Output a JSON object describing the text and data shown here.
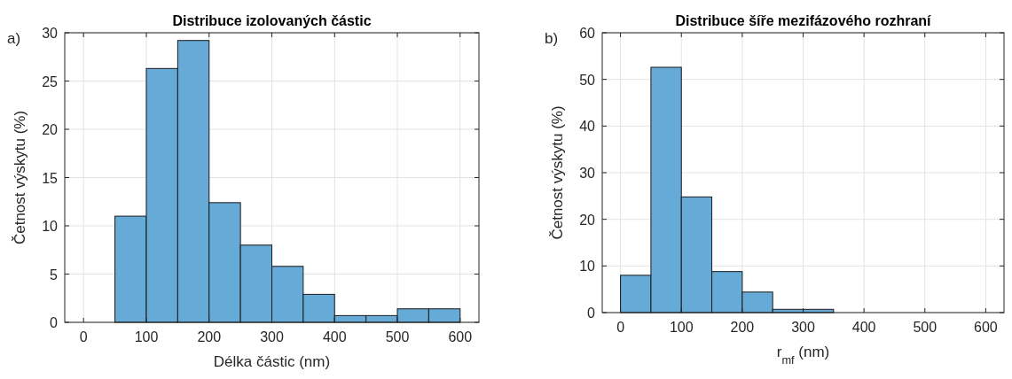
{
  "chart_data": [
    {
      "type": "histogram",
      "title": "Distribuce izolovaných částic",
      "xlabel": "Délka částic (nm)",
      "ylabel": "Četnost výskytu (%)",
      "annotations": [
        "a)"
      ],
      "bins": [
        0,
        50,
        100,
        150,
        200,
        250,
        300,
        350,
        400,
        450,
        500,
        550,
        600
      ],
      "values": [
        0,
        11,
        26.3,
        29.2,
        12.4,
        8,
        5.8,
        2.9,
        0.7,
        0.7,
        1.4,
        1.4
      ],
      "color": "#66aad7",
      "xlim": [
        -30,
        630
      ],
      "xticks": [
        0,
        100,
        200,
        300,
        400,
        500,
        600
      ],
      "ylim": [
        0,
        30
      ],
      "yticks": [
        0,
        5,
        10,
        15,
        20,
        25,
        30
      ],
      "grid": true
    },
    {
      "type": "histogram",
      "title": "Distribuce šíře mezifázového rozhraní",
      "xlabel": "r$_{mf}$ (nm)",
      "ylabel": "Četnost výskytu (%)",
      "annotations": [
        "b)"
      ],
      "bins": [
        0,
        50,
        100,
        150,
        200,
        250,
        300,
        350
      ],
      "values": [
        8,
        52.6,
        24.8,
        8.8,
        4.4,
        0.7,
        0.7
      ],
      "color": "#66aad7",
      "xlim": [
        -30,
        630
      ],
      "xticks": [
        0,
        100,
        200,
        300,
        400,
        500,
        600
      ],
      "ylim": [
        0,
        60
      ],
      "yticks": [
        0,
        10,
        20,
        30,
        40,
        50,
        60
      ],
      "grid": true
    }
  ]
}
